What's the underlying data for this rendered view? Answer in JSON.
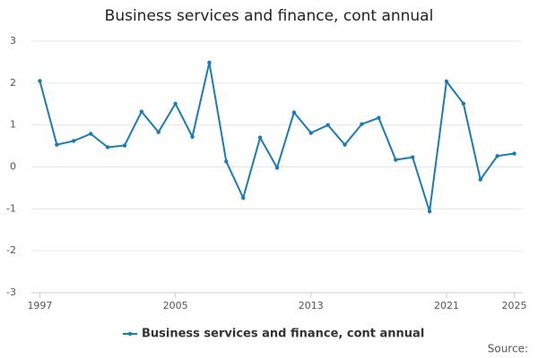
{
  "chart_data": {
    "type": "line",
    "title": "Business services and finance, cont annual",
    "x": [
      1997,
      1998,
      1999,
      2000,
      2001,
      2002,
      2003,
      2004,
      2005,
      2006,
      2007,
      2008,
      2009,
      2010,
      2011,
      2012,
      2013,
      2014,
      2015,
      2016,
      2017,
      2018,
      2019,
      2020,
      2021,
      2022,
      2023,
      2024,
      2025
    ],
    "series": [
      {
        "name": "Business services and finance, cont annual",
        "color": "#1a7bb9",
        "values": [
          2.05,
          0.53,
          0.62,
          0.79,
          0.47,
          0.51,
          1.32,
          0.83,
          1.51,
          0.72,
          2.49,
          0.13,
          -0.74,
          0.7,
          -0.02,
          1.3,
          0.81,
          1.0,
          0.53,
          1.02,
          1.17,
          0.17,
          0.23,
          -1.06,
          2.04,
          1.51,
          -0.3,
          0.26,
          0.32
        ]
      }
    ],
    "xlim": [
      1996.5,
      2025.5
    ],
    "xticks": [
      1997,
      2005,
      2013,
      2021,
      2025
    ],
    "ylim": [
      -3,
      3
    ],
    "yticks": [
      -3,
      -2,
      -1,
      0,
      1,
      2,
      3
    ],
    "grid": true,
    "legend": "bottom",
    "source_label": "Source:"
  }
}
